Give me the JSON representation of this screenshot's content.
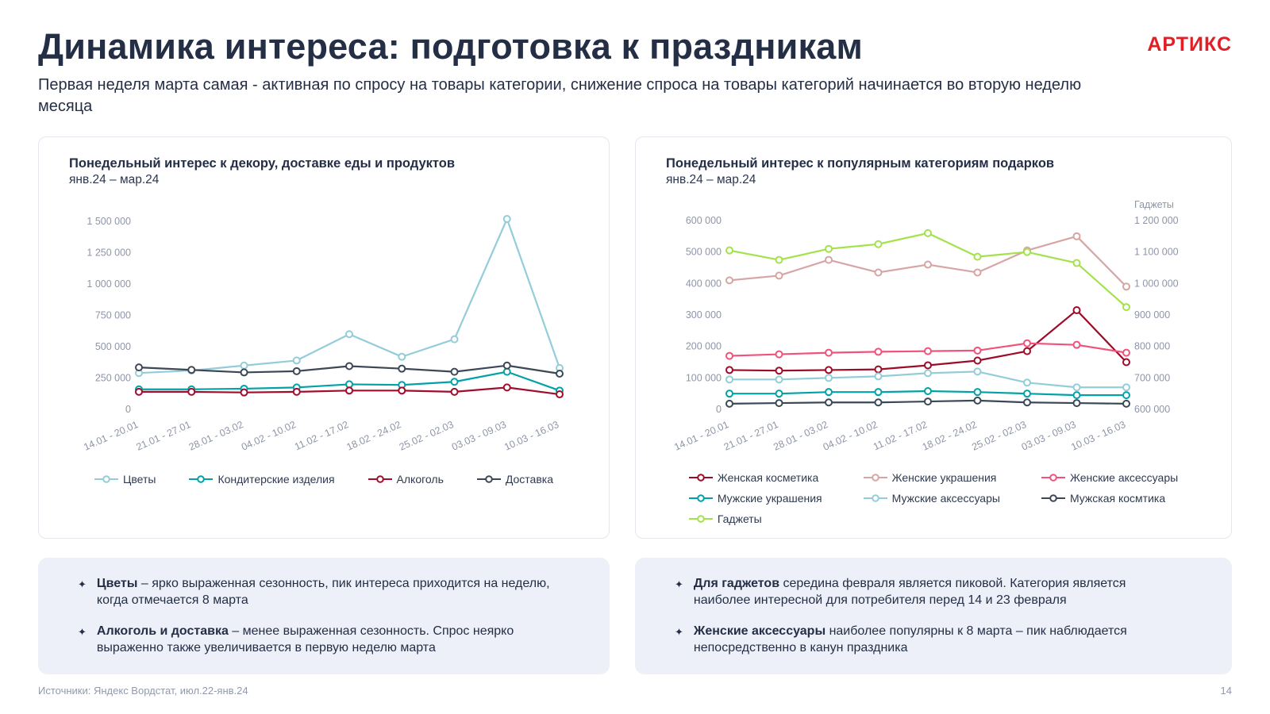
{
  "logo": "АРТИКС",
  "bullet_icon": "✦",
  "header": {
    "title": "Динамика интереса: подготовка к праздникам",
    "subtitle": "Первая неделя марта самая - активная по спросу на товары категории, снижение спроса на товары категорий начинается во вторую неделю месяца"
  },
  "footer": {
    "source": "Источники: Яндекс Вордстат, июл.22-янв.24",
    "page": "14"
  },
  "callouts": {
    "left": [
      {
        "bold": "Цветы",
        "text": " – ярко выраженная сезонность, пик интереса приходится на неделю, когда отмечается 8 марта"
      },
      {
        "bold": "Алкоголь и доставка",
        "text": " – менее выраженная сезонность. Спрос неярко выраженно также увеличивается в первую неделю марта"
      }
    ],
    "right": [
      {
        "bold": "Для гаджетов",
        "text": " середина февраля является пиковой. Категория является наиболее интересной для потребителя перед 14 и 23 февраля"
      },
      {
        "bold": "Женские аксессуары",
        "text": " наиболее популярны к 8 марта – пик наблюдается непосредственно в канун праздника"
      }
    ]
  },
  "chart_data": [
    {
      "type": "line",
      "title": "Понедельный интерес к декору, доставке еды и продуктов",
      "subtitle": "янв.24 – мар.24",
      "categories": [
        "14.01 - 20.01",
        "21.01 - 27.01",
        "28.01 - 03.02",
        "04.02 - 10.02",
        "11.02 - 17.02",
        "18.02 - 24.02",
        "25.02 - 02.03",
        "03.03 - 09.03",
        "10.03 - 16.03"
      ],
      "ylim": [
        0,
        1500000
      ],
      "yticks": [
        0,
        250000,
        500000,
        750000,
        1000000,
        1250000,
        1500000
      ],
      "grid": false,
      "legend_position": "bottom",
      "series": [
        {
          "name": "Цветы",
          "color": "#93cdd9",
          "values": [
            290000,
            310000,
            350000,
            390000,
            600000,
            420000,
            560000,
            1520000,
            330000
          ]
        },
        {
          "name": "Кондитерские изделия",
          "color": "#00a2a8",
          "values": [
            160000,
            160000,
            165000,
            175000,
            200000,
            195000,
            220000,
            300000,
            150000
          ]
        },
        {
          "name": "Алкоголь",
          "color": "#a00d2d",
          "values": [
            140000,
            140000,
            135000,
            140000,
            150000,
            150000,
            140000,
            175000,
            120000
          ]
        },
        {
          "name": "Доставка",
          "color": "#3d4856",
          "values": [
            335000,
            315000,
            295000,
            305000,
            345000,
            325000,
            300000,
            350000,
            285000
          ]
        }
      ]
    },
    {
      "type": "line",
      "title": "Понедельный интерес к популярным категориям подарков",
      "subtitle": "янв.24 – мар.24",
      "categories": [
        "14.01 - 20.01",
        "21.01 - 27.01",
        "28.01 - 03.02",
        "04.02 - 10.02",
        "11.02 - 17.02",
        "18.02 - 24.02",
        "25.02 - 02.03",
        "03.03 - 09.03",
        "10.03 - 16.03"
      ],
      "ylim": [
        0,
        600000
      ],
      "yticks": [
        0,
        100000,
        200000,
        300000,
        400000,
        500000,
        600000
      ],
      "y2label": "Гаджеты",
      "y2lim": [
        600000,
        1200000
      ],
      "y2ticks": [
        600000,
        700000,
        800000,
        900000,
        1000000,
        1100000,
        1200000
      ],
      "grid": false,
      "legend_position": "bottom",
      "series": [
        {
          "name": "Женская косметика",
          "color": "#9e0b28",
          "values": [
            125000,
            123000,
            125000,
            127000,
            140000,
            155000,
            185000,
            315000,
            150000
          ]
        },
        {
          "name": "Женские украшения",
          "color": "#d6a5a4",
          "values": [
            410000,
            425000,
            475000,
            435000,
            460000,
            435000,
            505000,
            550000,
            390000
          ]
        },
        {
          "name": "Женские аксессуары",
          "color": "#f0527a",
          "values": [
            170000,
            175000,
            180000,
            183000,
            185000,
            187000,
            210000,
            205000,
            180000
          ]
        },
        {
          "name": "Мужские украшения",
          "color": "#00a2a8",
          "values": [
            50000,
            50000,
            55000,
            55000,
            58000,
            55000,
            50000,
            45000,
            45000
          ]
        },
        {
          "name": "Мужские аксессуары",
          "color": "#93cdd9",
          "values": [
            95000,
            95000,
            100000,
            105000,
            115000,
            120000,
            85000,
            70000,
            70000
          ]
        },
        {
          "name": "Мужская космтика",
          "color": "#3d4856",
          "values": [
            18000,
            20000,
            22000,
            22000,
            25000,
            28000,
            22000,
            20000,
            18000
          ]
        },
        {
          "name": "Гаджеты",
          "color": "#a3e24b",
          "axis": "y2",
          "values": [
            1105000,
            1075000,
            1110000,
            1125000,
            1160000,
            1085000,
            1100000,
            1065000,
            925000
          ]
        }
      ]
    }
  ]
}
